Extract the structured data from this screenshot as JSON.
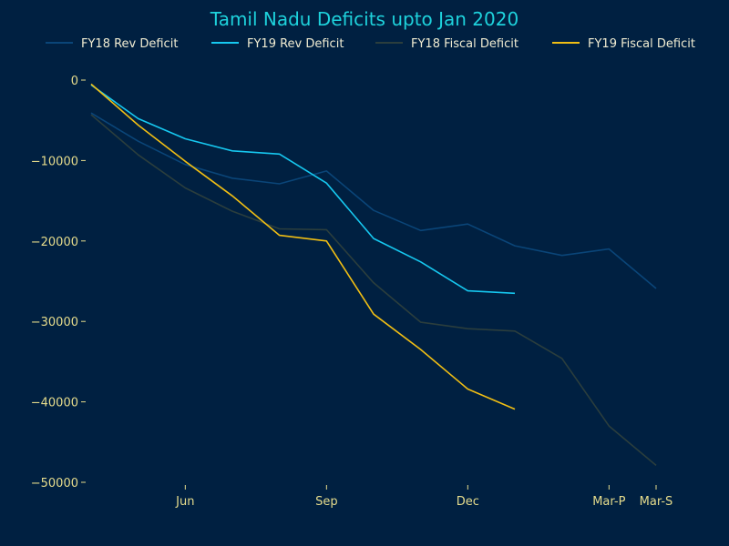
{
  "chart_data": {
    "type": "line",
    "title": "Tamil Nadu Deficits upto Jan 2020",
    "xlabel": "",
    "ylabel": "",
    "x_ticks": [
      "Jun",
      "Sep",
      "Dec",
      "Mar-P",
      "Mar-S"
    ],
    "y_ticks": [
      0,
      -10000,
      -20000,
      -30000,
      -40000,
      -50000
    ],
    "y_tick_labels": [
      "0",
      "−10000",
      "−20000",
      "−30000",
      "−40000",
      "−50000"
    ],
    "ylim": [
      -50000,
      0
    ],
    "grid": false,
    "legend_position": "top",
    "series": [
      {
        "name": "FY18 Rev Deficit",
        "color": "#0a4578",
        "x": [
          "Apr",
          "May",
          "Jun",
          "Jul",
          "Aug",
          "Sep",
          "Oct",
          "Nov",
          "Dec",
          "Jan",
          "Feb",
          "Mar-P",
          "Mar-S"
        ],
        "values": [
          -4100,
          -7600,
          -10500,
          -12200,
          -12900,
          -11300,
          -16200,
          -18700,
          -17900,
          -20600,
          -21800,
          -21000,
          -25900
        ]
      },
      {
        "name": "FY19 Rev Deficit",
        "color": "#16c8f0",
        "x": [
          "Apr",
          "May",
          "Jun",
          "Jul",
          "Aug",
          "Sep",
          "Oct",
          "Nov",
          "Dec",
          "Jan"
        ],
        "values": [
          -600,
          -4800,
          -7300,
          -8800,
          -9200,
          -12800,
          -19700,
          -22600,
          -26200,
          -26500
        ]
      },
      {
        "name": "FY18 Fiscal Deficit",
        "color": "#2b3e3d",
        "x": [
          "Apr",
          "May",
          "Jun",
          "Jul",
          "Aug",
          "Sep",
          "Oct",
          "Nov",
          "Dec",
          "Jan",
          "Feb",
          "Mar-P",
          "Mar-S"
        ],
        "values": [
          -4300,
          -9300,
          -13400,
          -16300,
          -18500,
          -18600,
          -25200,
          -30100,
          -30900,
          -31200,
          -34600,
          -43000,
          -47900
        ]
      },
      {
        "name": "FY19 Fiscal Deficit",
        "color": "#f0be14",
        "x": [
          "Apr",
          "May",
          "Jun",
          "Jul",
          "Aug",
          "Sep",
          "Oct",
          "Nov",
          "Dec",
          "Jan"
        ],
        "values": [
          -500,
          -5600,
          -10100,
          -14400,
          -19300,
          -20000,
          -29100,
          -33500,
          -38400,
          -40900
        ]
      }
    ]
  },
  "colors": {
    "background": "#002041",
    "title": "#1ed2dc",
    "tick_labels": "#e6dc8c",
    "legend_text": "#f0ecd2",
    "tick_marks": "#e6dc8c"
  }
}
